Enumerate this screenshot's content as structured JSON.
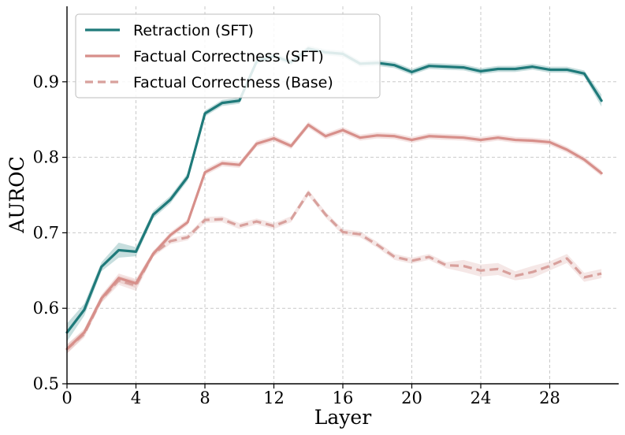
{
  "chart_data": {
    "type": "line",
    "title": "",
    "xlabel": "Layer",
    "ylabel": "AUROC",
    "xlim": [
      0,
      32
    ],
    "ylim": [
      0.5,
      1.0
    ],
    "xticks": [
      0,
      4,
      8,
      12,
      16,
      20,
      24,
      28
    ],
    "xtick_labels": [
      "0",
      "4",
      "8",
      "12",
      "16",
      "20",
      "24",
      "28"
    ],
    "yticks": [
      0.5,
      0.6,
      0.7,
      0.8,
      0.9
    ],
    "ytick_labels": [
      "0.5",
      "0.6",
      "0.7",
      "0.8",
      "0.9"
    ],
    "grid": true,
    "legend_position": "top-left",
    "x": [
      0,
      1,
      2,
      3,
      4,
      5,
      6,
      7,
      8,
      9,
      10,
      11,
      12,
      13,
      14,
      15,
      16,
      17,
      18,
      19,
      20,
      21,
      22,
      23,
      24,
      25,
      26,
      27,
      28,
      29,
      30,
      31
    ],
    "series": [
      {
        "name": "Retraction (SFT)",
        "color": "#1f7a7a",
        "style": "solid",
        "values": [
          0.568,
          0.598,
          0.655,
          0.677,
          0.675,
          0.724,
          0.744,
          0.774,
          0.858,
          0.872,
          0.875,
          0.927,
          0.934,
          0.926,
          0.944,
          0.939,
          0.937,
          0.924,
          0.925,
          0.922,
          0.913,
          0.921,
          0.92,
          0.919,
          0.914,
          0.917,
          0.917,
          0.92,
          0.916,
          0.916,
          0.911,
          0.875
        ],
        "band": [
          0.012,
          0.008,
          0.006,
          0.01,
          0.006,
          0.005,
          0.005,
          0.005,
          0.004,
          0.004,
          0.004,
          0.004,
          0.004,
          0.004,
          0.004,
          0.004,
          0.004,
          0.004,
          0.004,
          0.004,
          0.004,
          0.004,
          0.004,
          0.004,
          0.004,
          0.004,
          0.004,
          0.004,
          0.004,
          0.004,
          0.004,
          0.008
        ]
      },
      {
        "name": "Factual Correctness (SFT)",
        "color": "#d78f8a",
        "style": "solid",
        "values": [
          0.546,
          0.568,
          0.613,
          0.64,
          0.633,
          0.672,
          0.697,
          0.714,
          0.78,
          0.792,
          0.79,
          0.818,
          0.825,
          0.815,
          0.843,
          0.828,
          0.836,
          0.826,
          0.829,
          0.828,
          0.823,
          0.828,
          0.827,
          0.826,
          0.823,
          0.826,
          0.823,
          0.822,
          0.82,
          0.81,
          0.797,
          0.779
        ],
        "band": [
          0.006,
          0.005,
          0.005,
          0.006,
          0.006,
          0.004,
          0.004,
          0.004,
          0.004,
          0.004,
          0.004,
          0.004,
          0.004,
          0.004,
          0.004,
          0.004,
          0.004,
          0.004,
          0.004,
          0.004,
          0.004,
          0.004,
          0.004,
          0.004,
          0.004,
          0.004,
          0.004,
          0.004,
          0.004,
          0.004,
          0.004,
          0.004
        ]
      },
      {
        "name": "Factual Correctness (Base)",
        "color": "#d8a09c",
        "style": "dashed",
        "values": [
          0.546,
          0.566,
          0.612,
          0.637,
          0.63,
          0.672,
          0.689,
          0.694,
          0.717,
          0.718,
          0.709,
          0.715,
          0.709,
          0.718,
          0.753,
          0.724,
          0.701,
          0.698,
          0.684,
          0.668,
          0.663,
          0.668,
          0.657,
          0.656,
          0.65,
          0.652,
          0.643,
          0.648,
          0.656,
          0.666,
          0.641,
          0.646
        ],
        "band": [
          0.006,
          0.005,
          0.005,
          0.006,
          0.007,
          0.004,
          0.004,
          0.004,
          0.004,
          0.004,
          0.004,
          0.004,
          0.004,
          0.004,
          0.004,
          0.004,
          0.004,
          0.004,
          0.004,
          0.004,
          0.004,
          0.004,
          0.004,
          0.008,
          0.008,
          0.008,
          0.006,
          0.008,
          0.006,
          0.006,
          0.006,
          0.006
        ]
      }
    ]
  }
}
